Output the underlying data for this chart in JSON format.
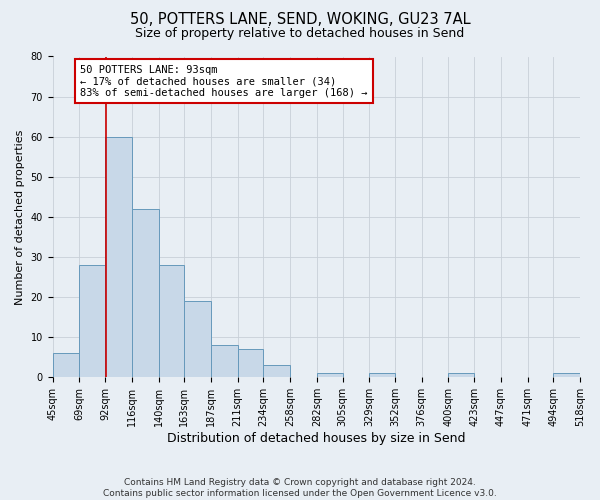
{
  "title": "50, POTTERS LANE, SEND, WOKING, GU23 7AL",
  "subtitle": "Size of property relative to detached houses in Send",
  "xlabel": "Distribution of detached houses by size in Send",
  "ylabel": "Number of detached properties",
  "bin_edges": [
    45,
    69,
    92,
    116,
    140,
    163,
    187,
    211,
    234,
    258,
    282,
    305,
    329,
    352,
    376,
    400,
    423,
    447,
    471,
    494,
    518
  ],
  "bin_labels": [
    "45sqm",
    "69sqm",
    "92sqm",
    "116sqm",
    "140sqm",
    "163sqm",
    "187sqm",
    "211sqm",
    "234sqm",
    "258sqm",
    "282sqm",
    "305sqm",
    "329sqm",
    "352sqm",
    "376sqm",
    "400sqm",
    "423sqm",
    "447sqm",
    "471sqm",
    "494sqm",
    "518sqm"
  ],
  "counts": [
    6,
    28,
    60,
    42,
    28,
    19,
    8,
    7,
    3,
    0,
    1,
    0,
    1,
    0,
    0,
    1,
    0,
    0,
    0,
    1
  ],
  "bar_facecolor": "#c8d8e8",
  "bar_edgecolor": "#6699bb",
  "property_value": 93,
  "vline_color": "#cc0000",
  "annotation_line1": "50 POTTERS LANE: 93sqm",
  "annotation_line2": "← 17% of detached houses are smaller (34)",
  "annotation_line3": "83% of semi-detached houses are larger (168) →",
  "annotation_boxcolor": "white",
  "annotation_boxedge": "#cc0000",
  "ylim": [
    0,
    80
  ],
  "yticks": [
    0,
    10,
    20,
    30,
    40,
    50,
    60,
    70,
    80
  ],
  "grid_color": "#c8d0d8",
  "background_color": "#e8eef4",
  "footer_line1": "Contains HM Land Registry data © Crown copyright and database right 2024.",
  "footer_line2": "Contains public sector information licensed under the Open Government Licence v3.0.",
  "title_fontsize": 10.5,
  "subtitle_fontsize": 9,
  "ylabel_fontsize": 8,
  "xlabel_fontsize": 9,
  "tick_fontsize": 7,
  "annotation_fontsize": 7.5,
  "footer_fontsize": 6.5
}
